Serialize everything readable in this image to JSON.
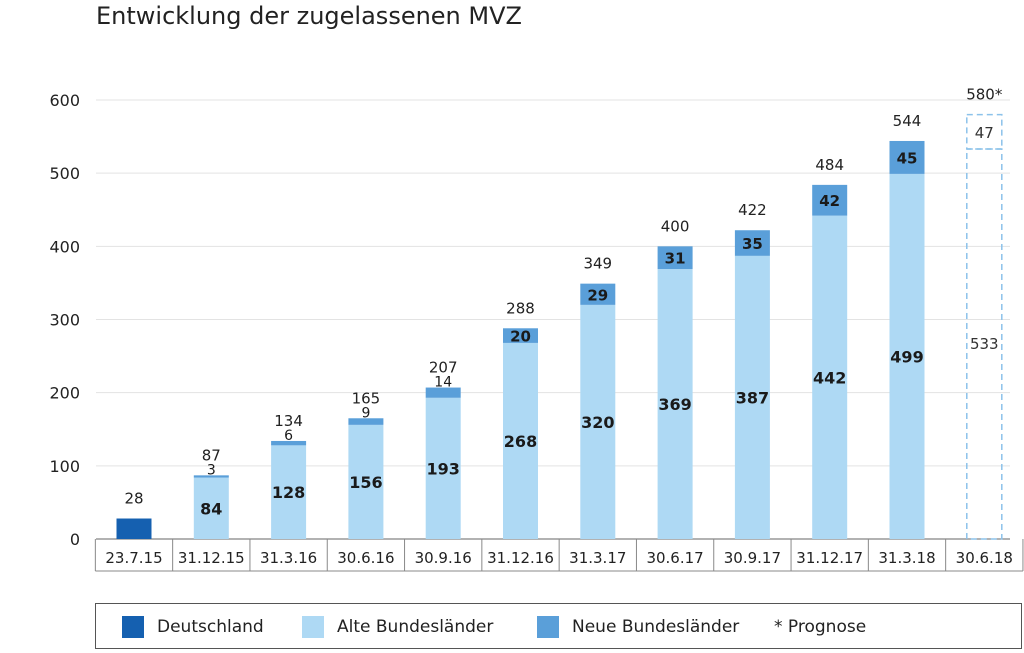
{
  "title": "Entwicklung der zugelassenen MVZ",
  "chart_data": {
    "type": "bar",
    "stacked": true,
    "title": "Entwicklung der zugelassenen MVZ",
    "categories": [
      "23.7.15",
      "31.12.15",
      "31.3.16",
      "30.6.16",
      "30.9.16",
      "31.12.16",
      "31.3.17",
      "30.6.17",
      "30.9.17",
      "31.12.17",
      "31.3.18",
      "30.6.18"
    ],
    "series": [
      {
        "name": "Deutschland",
        "color": "#1560b0",
        "values": [
          28,
          null,
          null,
          null,
          null,
          null,
          null,
          null,
          null,
          null,
          null,
          null
        ]
      },
      {
        "name": "Alte Bundesländer",
        "color": "#aed9f4",
        "values": [
          null,
          84,
          128,
          156,
          193,
          268,
          320,
          369,
          387,
          442,
          499,
          533
        ]
      },
      {
        "name": "Neue Bundesländer",
        "color": "#5a9fd9",
        "values": [
          null,
          3,
          6,
          9,
          14,
          20,
          29,
          31,
          35,
          42,
          45,
          47
        ]
      }
    ],
    "totals": [
      "28",
      "87",
      "134",
      "165",
      "207",
      "288",
      "349",
      "400",
      "422",
      "484",
      "544",
      "580*"
    ],
    "forecast_index": 11,
    "ylim": [
      0,
      600
    ],
    "yticks": [
      0,
      100,
      200,
      300,
      400,
      500,
      600
    ],
    "grid": true,
    "legend_position": "bottom",
    "legend": {
      "deutschland": "Deutschland",
      "alte": "Alte Bundesländer",
      "neue": "Neue Bundesländer",
      "prognose": "* Prognose"
    }
  }
}
